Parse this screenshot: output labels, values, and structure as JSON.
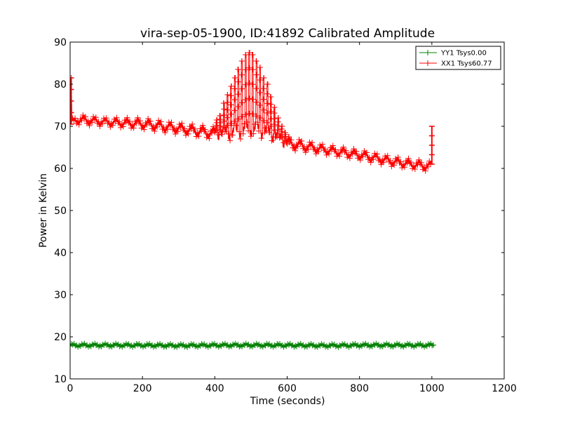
{
  "chart_data": {
    "type": "line",
    "title": "vira-sep-05-1900, ID:41892 Calibrated Amplitude",
    "xlabel": "Time (seconds)",
    "ylabel": "Power in Kelvin",
    "xlim": [
      0,
      1200
    ],
    "ylim": [
      10,
      90
    ],
    "xticks": [
      "0",
      "200",
      "400",
      "600",
      "800",
      "1000",
      "1200"
    ],
    "yticks": [
      "10",
      "20",
      "30",
      "40",
      "50",
      "60",
      "70",
      "80",
      "90"
    ],
    "grid": false,
    "legend_position": "top-right",
    "series": [
      {
        "name": "YY1 Tsys0.00",
        "color": "#008000",
        "marker": "plus",
        "x": [
          0,
          100,
          200,
          300,
          400,
          500,
          600,
          700,
          800,
          900,
          1000,
          1005
        ],
        "y": [
          18.0,
          18.0,
          18.0,
          17.9,
          18.0,
          18.0,
          18.0,
          17.9,
          18.0,
          18.0,
          18.0,
          18.0
        ],
        "osc": [
          0.25,
          0.25,
          0.25,
          0.25,
          0.25,
          0.25,
          0.25,
          0.25,
          0.25,
          0.25,
          0.25,
          0.25
        ]
      },
      {
        "name": "XX1 Tsys60.77",
        "color": "#ff0000",
        "marker": "plus",
        "x": [
          3,
          5,
          20,
          100,
          200,
          300,
          400,
          450,
          500,
          550,
          600,
          700,
          800,
          900,
          990,
          1000
        ],
        "y": [
          81.5,
          71.0,
          71.6,
          71.0,
          70.6,
          69.5,
          68.3,
          68.5,
          69.5,
          68.5,
          66.0,
          64.5,
          63.2,
          61.5,
          60.5,
          61.0
        ],
        "osc": [
          0.3,
          0.5,
          0.8,
          0.7,
          0.9,
          0.9,
          1.0,
          1.2,
          1.2,
          1.2,
          1.0,
          0.8,
          0.8,
          0.8,
          0.8,
          0.5
        ]
      }
    ],
    "bursts": {
      "x": [
        405,
        415,
        425,
        435,
        445,
        455,
        465,
        475,
        485,
        495,
        505,
        515,
        525,
        535,
        545,
        555,
        565,
        575,
        585,
        595,
        605
      ],
      "peak": [
        71.5,
        72.5,
        75.5,
        77.5,
        79.5,
        81.5,
        83.5,
        85.5,
        87.0,
        87.5,
        87.0,
        85.5,
        84.0,
        81.5,
        80.0,
        77.0,
        74.5,
        72.0,
        70.0,
        68.5,
        67.5
      ]
    },
    "end_spike": {
      "x": 1000,
      "y_min": 61.0,
      "y_max": 70.0
    },
    "start_spike": {
      "x": 3,
      "y_min": 70.5,
      "y_max": 81.5
    }
  }
}
